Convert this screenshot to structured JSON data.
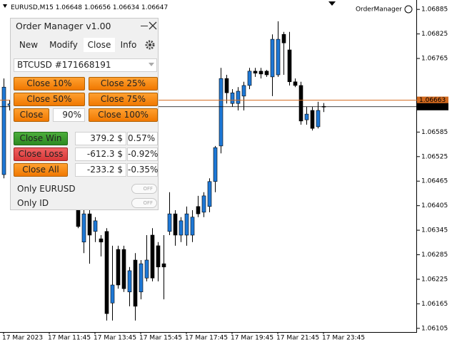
{
  "header": {
    "symbol": "EURUSD,M15",
    "expert": "OrderManager"
  },
  "chart_data": {
    "type": "candlestick",
    "categories": [
      "17 Mar 2023",
      null,
      null,
      null,
      null,
      null,
      null,
      null,
      "17 Mar 11:45",
      null,
      null,
      null,
      null,
      null,
      null,
      null,
      "17 Mar 13:45",
      null,
      null,
      null,
      null,
      null,
      null,
      null,
      "17 Mar 15:45",
      null,
      null,
      null,
      null,
      null,
      null,
      null,
      "17 Mar 17:45",
      null,
      null,
      null,
      null,
      null,
      null,
      null,
      "17 Mar 19:45",
      null,
      null,
      null,
      null,
      null,
      null,
      null,
      "17 Mar 21:45",
      null,
      null,
      null,
      null,
      null,
      null,
      null,
      "17 Mar 23:45"
    ],
    "open": [
      1.06481,
      1.0665,
      null,
      null,
      null,
      null,
      null,
      null,
      null,
      null,
      null,
      null,
      null,
      1.06403,
      1.06316,
      1.06385,
      1.06342,
      1.06324,
      1.06342,
      1.06167,
      1.06298,
      1.06298,
      1.06194,
      1.06272,
      1.06194,
      1.06228,
      1.06333,
      1.06307,
      1.06263,
      1.06342,
      1.06385,
      1.06333,
      1.06333,
      1.06333,
      1.06403,
      1.06389,
      1.06403,
      1.06464,
      1.06551,
      1.06716,
      1.06655,
      1.06655,
      1.06673,
      1.06699,
      1.06734,
      1.06734,
      1.06734,
      1.0672,
      1.06725,
      1.06824,
      1.06786,
      1.06708,
      1.06699,
      1.06615,
      1.06638,
      1.06598,
      1.06648
    ],
    "high": [
      1.06716,
      1.06664,
      null,
      null,
      null,
      null,
      null,
      null,
      null,
      null,
      null,
      null,
      null,
      1.06411,
      1.06403,
      1.06394,
      1.06377,
      1.06333,
      1.0635,
      1.06307,
      1.06307,
      1.06307,
      1.06255,
      1.06289,
      1.06272,
      1.06333,
      1.0635,
      1.06316,
      1.06333,
      1.06438,
      1.06394,
      1.06377,
      1.06403,
      1.06394,
      1.06429,
      1.06438,
      1.06472,
      1.06551,
      1.06742,
      1.06725,
      1.0669,
      1.06695,
      1.06708,
      1.06742,
      1.06742,
      1.06742,
      1.06737,
      1.06824,
      1.06856,
      1.0683,
      1.0683,
      1.06716,
      1.06708,
      1.06647,
      1.06647,
      1.06659,
      1.06656
    ],
    "low": [
      1.06472,
      1.06638,
      null,
      null,
      null,
      null,
      null,
      null,
      null,
      null,
      null,
      null,
      null,
      1.0635,
      1.06289,
      1.06263,
      1.06316,
      1.06281,
      1.06124,
      1.06124,
      1.06202,
      1.06194,
      1.06159,
      1.06124,
      1.06176,
      1.0622,
      1.0622,
      1.0622,
      1.06176,
      1.06333,
      1.06307,
      1.06316,
      1.06307,
      1.06316,
      1.06377,
      1.06377,
      1.06389,
      1.06438,
      1.06533,
      1.06655,
      1.06647,
      1.06638,
      1.06638,
      1.0669,
      1.0672,
      1.06716,
      1.0672,
      1.06673,
      1.0672,
      1.06725,
      1.06699,
      1.06695,
      1.06603,
      1.06603,
      1.06589,
      1.06594,
      1.06634
    ],
    "close": [
      1.06695,
      1.06654,
      null,
      null,
      null,
      null,
      null,
      null,
      null,
      null,
      null,
      null,
      null,
      1.06354,
      1.06385,
      1.06333,
      1.06368,
      1.06316,
      1.06141,
      1.06211,
      1.06211,
      1.06202,
      1.06246,
      1.06159,
      1.06263,
      1.06272,
      1.06228,
      1.06255,
      1.06255,
      1.06385,
      1.06333,
      1.06368,
      1.06385,
      1.06377,
      1.06385,
      1.06429,
      1.06464,
      1.06547,
      1.06716,
      1.06681,
      1.06681,
      1.06685,
      1.06699,
      1.06734,
      1.06729,
      1.06727,
      1.06725,
      1.06812,
      1.06812,
      1.06803,
      1.06708,
      1.06699,
      1.06612,
      1.06629,
      1.06594,
      1.06638,
      1.06647
    ],
    "up_color": "#1e78d6",
    "down_color": "#000000",
    "ask_line": 1.06663,
    "ask_color": "#d2691e",
    "bid_color": "#000000",
    "ylim": [
      1.06096,
      1.06908
    ],
    "yticks": [
      1.06885,
      1.06825,
      1.06765,
      1.06585,
      1.06525,
      1.06465,
      1.06405,
      1.06345,
      1.06285,
      1.06225,
      1.06165,
      1.06105
    ],
    "grid": false
  },
  "panel": {
    "title": "Order Manager v1.00",
    "tabs": [
      "New",
      "Modify",
      "Close",
      "Info"
    ],
    "ticket": "BTCUSD #171668191",
    "buttons": [
      "Close 10%",
      "Close 25%",
      "Close 50%",
      "Close 75%",
      "Close",
      "Close 100%"
    ],
    "percent_input": "90%",
    "rows": [
      [
        "Close Win",
        "379.2 $",
        "0.57%"
      ],
      [
        "Close Loss",
        "-612.3 $",
        "-0.92%"
      ],
      [
        "Close All",
        "-233.2 $",
        "-0.35%"
      ]
    ],
    "toggles": [
      [
        "Only EURUSD",
        "OFF"
      ],
      [
        "Only ID",
        "OFF"
      ]
    ]
  }
}
